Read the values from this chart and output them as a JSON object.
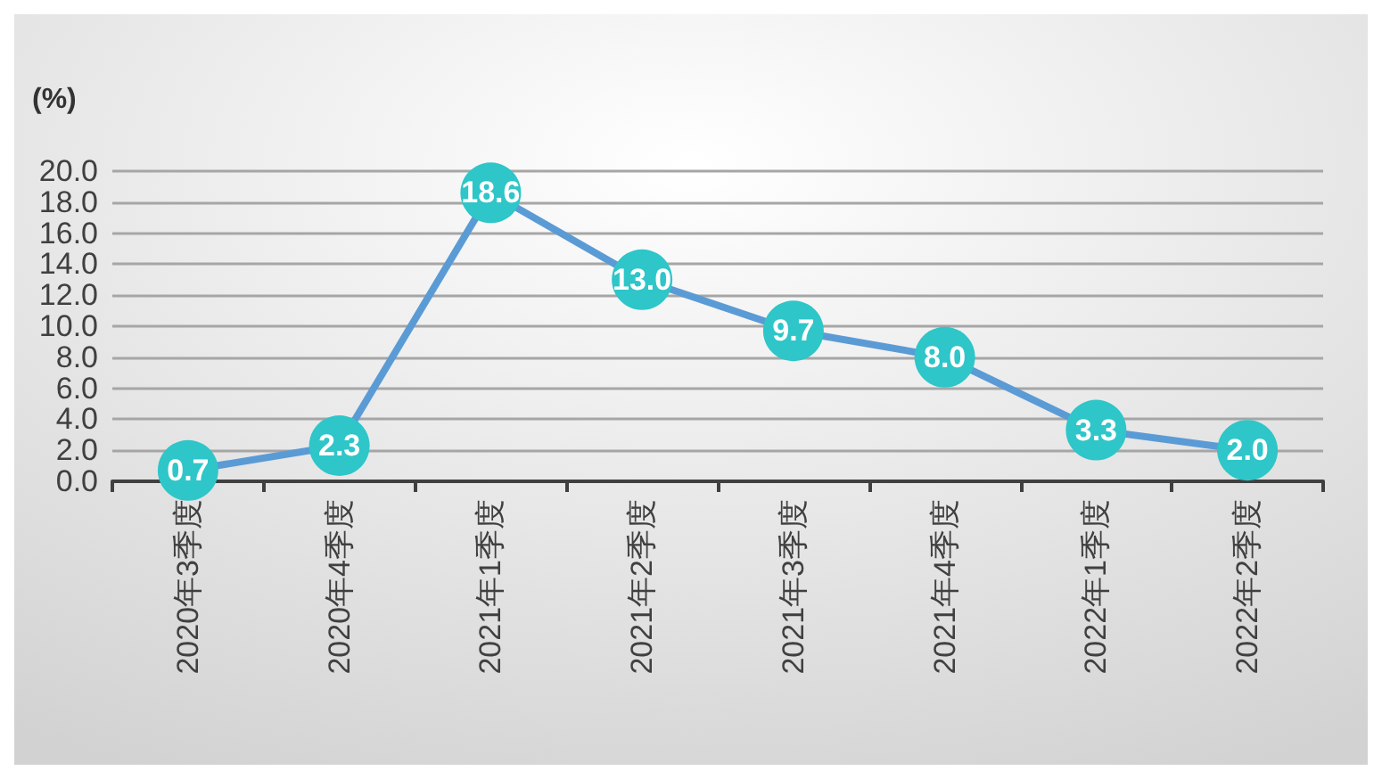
{
  "chart_data": {
    "type": "line",
    "ylabel": "(%)",
    "categories": [
      "2020年3季度",
      "2020年4季度",
      "2021年1季度",
      "2021年2季度",
      "2021年3季度",
      "2021年4季度",
      "2022年1季度",
      "2022年2季度"
    ],
    "series": [
      {
        "color": "#5b9bd5",
        "values": [
          0.7,
          2.3,
          18.6,
          13.0,
          9.7,
          8.0,
          3.3,
          2.0
        ],
        "value_labels": [
          "0.7",
          "2.3",
          "18.6",
          "13.0",
          "9.7",
          "8.0",
          "3.3",
          "2.0"
        ]
      }
    ],
    "ylim": [
      0,
      20
    ],
    "yticks": [
      {
        "value": 0,
        "label": "0.0"
      },
      {
        "value": 2,
        "label": "2.0"
      },
      {
        "value": 4,
        "label": "4.0"
      },
      {
        "value": 6,
        "label": "6.0"
      },
      {
        "value": 8,
        "label": "8.0"
      },
      {
        "value": 10,
        "label": "10.0"
      },
      {
        "value": 12,
        "label": "12.0"
      },
      {
        "value": 14,
        "label": "14.0"
      },
      {
        "value": 16,
        "label": "16.0"
      },
      {
        "value": 18,
        "label": "18.0"
      },
      {
        "value": 20,
        "label": "20.0"
      }
    ],
    "grid": "y",
    "marker": "circle",
    "line_style": "solid"
  }
}
